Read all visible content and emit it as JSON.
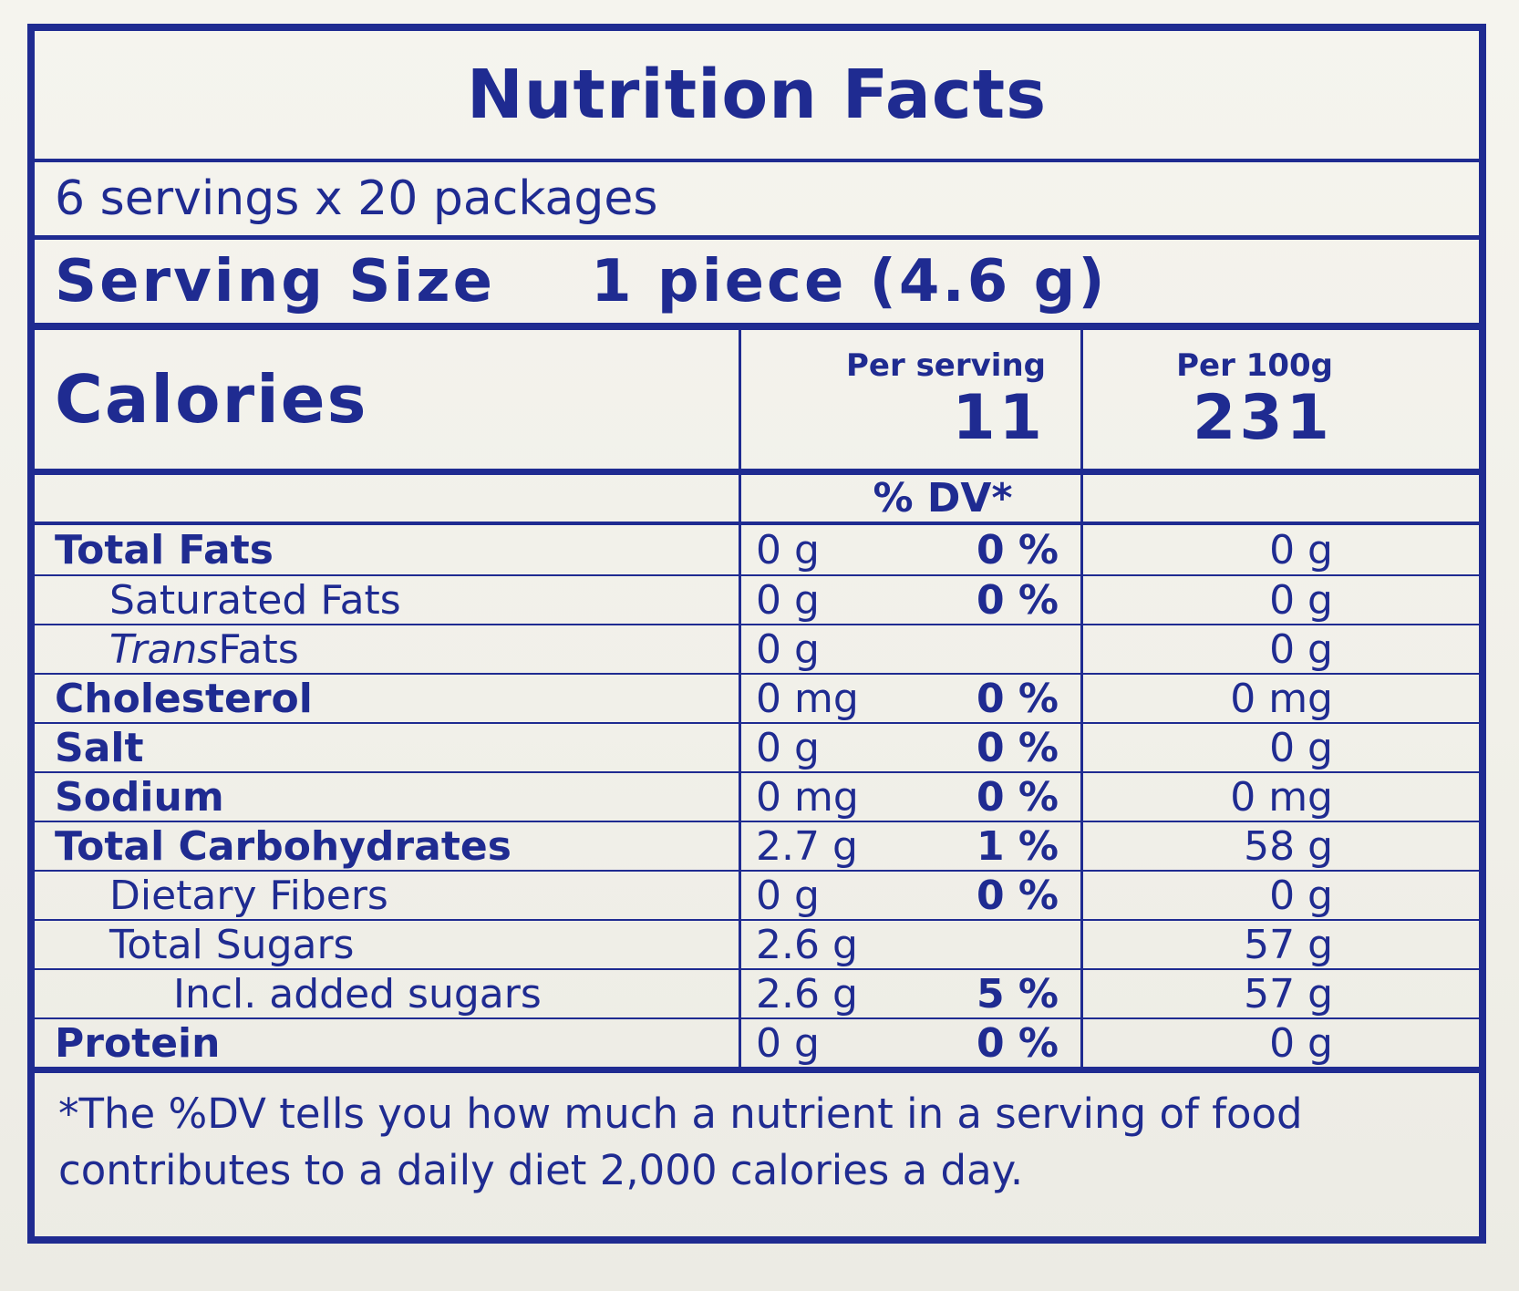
{
  "nutrition_label": {
    "title": "Nutrition Facts",
    "servings_line": "6 servings x 20 packages",
    "serving_size": {
      "label": "Serving Size",
      "value": "1 piece (4.6 g)"
    },
    "calories": {
      "label": "Calories",
      "per_serving_header": "Per serving",
      "per_serving_value": "11",
      "per_100g_header": "Per 100g",
      "per_100g_value": "231"
    },
    "dv_header": "% DV*",
    "nutrients": [
      {
        "name": "Total Fats",
        "bold": true,
        "indent": 0,
        "amount": "0 g",
        "dv": "0 %",
        "per_100g": "0 g"
      },
      {
        "name": "Saturated Fats",
        "bold": false,
        "indent": 1,
        "amount": "0 g",
        "dv": "0 %",
        "per_100g": "0 g"
      },
      {
        "name_parts": [
          {
            "text": "Trans",
            "italic": true
          },
          {
            "text": " Fats",
            "italic": false
          }
        ],
        "bold": false,
        "indent": 1,
        "amount": "0 g",
        "dv": "",
        "per_100g": "0 g"
      },
      {
        "name": "Cholesterol",
        "bold": true,
        "indent": 0,
        "amount": "0 mg",
        "dv": "0 %",
        "per_100g": "0 mg"
      },
      {
        "name": "Salt",
        "bold": true,
        "indent": 0,
        "amount": "0 g",
        "dv": "0 %",
        "per_100g": "0 g"
      },
      {
        "name": "Sodium",
        "bold": true,
        "indent": 0,
        "amount": "0 mg",
        "dv": "0 %",
        "per_100g": "0 mg"
      },
      {
        "name": "Total Carbohydrates",
        "bold": true,
        "indent": 0,
        "amount": "2.7 g",
        "dv": "1 %",
        "per_100g": "58 g"
      },
      {
        "name": "Dietary Fibers",
        "bold": false,
        "indent": 1,
        "amount": "0 g",
        "dv": "0 %",
        "per_100g": "0 g"
      },
      {
        "name": "Total Sugars",
        "bold": false,
        "indent": 1,
        "amount": "2.6 g",
        "dv": "",
        "per_100g": "57 g"
      },
      {
        "name": "Incl. added sugars",
        "bold": false,
        "indent": 2,
        "amount": "2.6 g",
        "dv": "5 %",
        "per_100g": "57 g"
      },
      {
        "name": "Protein",
        "bold": true,
        "indent": 0,
        "amount": "0 g",
        "dv": "0 %",
        "per_100g": "0 g"
      }
    ],
    "footnote": "*The %DV tells you how much a nutrient in a serving of food contributes to a daily diet 2,000 calories a day.",
    "colors": {
      "ink_blue": "#1f2b91",
      "paper": "#f1f0e9"
    }
  }
}
